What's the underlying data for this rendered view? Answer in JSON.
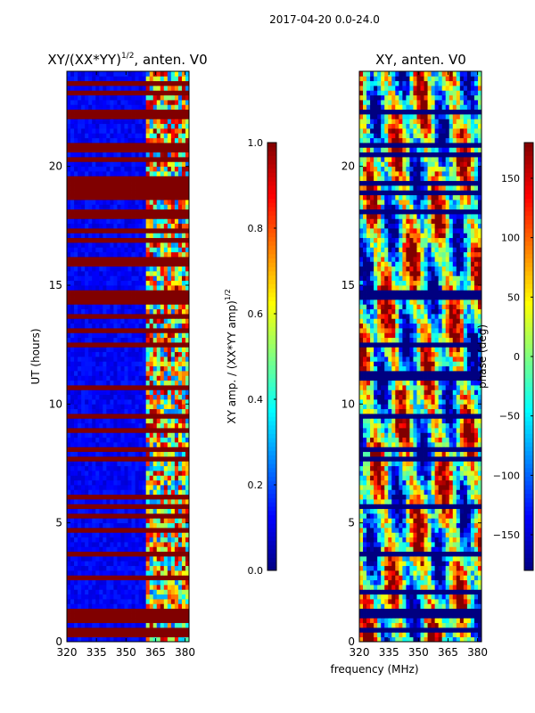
{
  "suptitle": "2017-04-20 0.0-24.0",
  "xlabel_shared": "frequency (MHz)",
  "chart_data": [
    {
      "type": "heatmap",
      "title_main": "XY/(XX*YY)",
      "title_exp": "1/2",
      "title_tail": ", anten. V0",
      "xlabel": "",
      "ylabel": "UT (hours)",
      "xlim": [
        320,
        382
      ],
      "ylim": [
        0,
        24
      ],
      "xticks": [
        320,
        335,
        350,
        365,
        380
      ],
      "yticks": [
        0,
        5,
        10,
        15,
        20
      ],
      "colorbar": {
        "label_main": "XY amp. / (XX*YY amp)",
        "label_exp": "1/2",
        "range": [
          0.0,
          1.0
        ],
        "ticks": [
          0.0,
          0.2,
          0.4,
          0.6,
          0.8,
          1.0
        ],
        "tick_labels": [
          "0.0",
          "0.2",
          "0.4",
          "0.6",
          "0.8",
          "1.0"
        ],
        "colormap": "jet"
      },
      "flagged_rows_hours": [
        0.3,
        0.5,
        0.95,
        1.05,
        1.15,
        1.3,
        2.6,
        3.6,
        4.6,
        5.2,
        5.7,
        6.0,
        7.6,
        7.75,
        8.2,
        8.8,
        9.5,
        10.6,
        12.4,
        13.2,
        13.6,
        14.25,
        14.4,
        14.6,
        15.8,
        16.2,
        16.8,
        17.2,
        17.8,
        18.1,
        18.6,
        18.9,
        19.1,
        19.35,
        19.5,
        20.3,
        20.6,
        20.9,
        22.0,
        22.4,
        23.0,
        23.4
      ],
      "notes": "Low-frequency channels (320-360 MHz) near 0.1 amplitude; high channels (360-382 MHz) fluctuate between 0.2 and 1.0"
    },
    {
      "type": "heatmap",
      "title": "XY, anten. V0",
      "xlabel": "frequency (MHz)",
      "ylabel": "",
      "xlim": [
        320,
        382
      ],
      "ylim": [
        0,
        24
      ],
      "xticks": [
        320,
        335,
        350,
        365,
        380
      ],
      "yticks": [
        0,
        5,
        10,
        15,
        20
      ],
      "colorbar": {
        "label": "phase (deg)",
        "range": [
          -180,
          180
        ],
        "ticks": [
          -150,
          -100,
          -50,
          0,
          50,
          100,
          150
        ],
        "tick_labels": [
          "−150",
          "−100",
          "−50",
          "0",
          "50",
          "100",
          "150"
        ],
        "colormap": "jet"
      },
      "flagged_rows_hours": [
        0.5,
        1.0,
        1.3,
        2.0,
        3.6,
        5.7,
        7.6,
        7.75,
        8.2,
        9.5,
        11.0,
        11.3,
        12.4,
        14.4,
        14.6,
        18.1,
        18.9,
        19.35,
        20.5,
        20.9,
        22.4
      ],
      "notes": "Phase spans full range, mixed blue/red/green patches"
    }
  ]
}
